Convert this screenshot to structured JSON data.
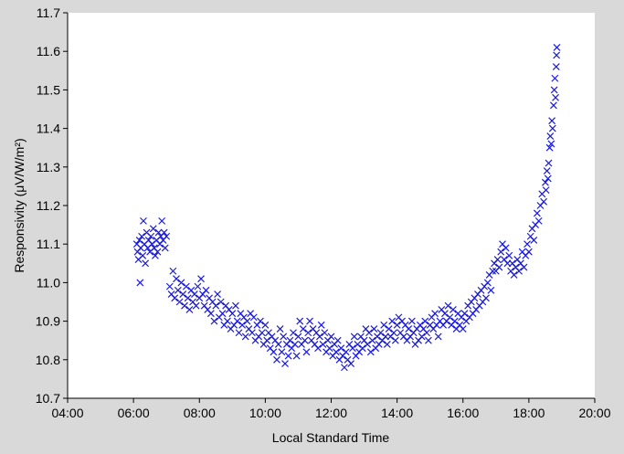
{
  "chart_data": {
    "type": "scatter",
    "title": "",
    "xlabel": "Local Standard Time",
    "ylabel": "Responsivity (μV/W/m²)",
    "x_unit": "hours (local standard time)",
    "xlim": [
      4,
      20
    ],
    "ylim": [
      10.7,
      11.7
    ],
    "x_ticks": [
      {
        "value": 4,
        "label": "04:00"
      },
      {
        "value": 6,
        "label": "06:00"
      },
      {
        "value": 8,
        "label": "08:00"
      },
      {
        "value": 10,
        "label": "10:00"
      },
      {
        "value": 12,
        "label": "12:00"
      },
      {
        "value": 14,
        "label": "14:00"
      },
      {
        "value": 16,
        "label": "16:00"
      },
      {
        "value": 18,
        "label": "18:00"
      },
      {
        "value": 20,
        "label": "20:00"
      }
    ],
    "y_ticks": [
      {
        "value": 10.7,
        "label": "10.7"
      },
      {
        "value": 10.8,
        "label": "10.8"
      },
      {
        "value": 10.9,
        "label": "10.9"
      },
      {
        "value": 11.0,
        "label": "11.0"
      },
      {
        "value": 11.1,
        "label": "11.1"
      },
      {
        "value": 11.2,
        "label": "11.2"
      },
      {
        "value": 11.3,
        "label": "11.3"
      },
      {
        "value": 11.4,
        "label": "11.4"
      },
      {
        "value": 11.5,
        "label": "11.5"
      },
      {
        "value": 11.6,
        "label": "11.6"
      },
      {
        "value": 11.7,
        "label": "11.7"
      }
    ],
    "grid": false,
    "legend": "none",
    "marker": "x",
    "colors": {
      "marker": "#1a1adc",
      "plot_background": "#ffffff",
      "frame_background": "#d9d9d9",
      "axis": "#000000"
    },
    "series": [
      {
        "marker": "x",
        "points": [
          [
            6.1,
            11.1
          ],
          [
            6.12,
            11.08
          ],
          [
            6.15,
            11.06
          ],
          [
            6.18,
            11.11
          ],
          [
            6.2,
            11.0
          ],
          [
            6.22,
            11.09
          ],
          [
            6.25,
            11.12
          ],
          [
            6.28,
            11.07
          ],
          [
            6.3,
            11.16
          ],
          [
            6.33,
            11.1
          ],
          [
            6.36,
            11.05
          ],
          [
            6.4,
            11.13
          ],
          [
            6.43,
            11.09
          ],
          [
            6.46,
            11.11
          ],
          [
            6.5,
            11.08
          ],
          [
            6.53,
            11.12
          ],
          [
            6.56,
            11.1
          ],
          [
            6.6,
            11.14
          ],
          [
            6.63,
            11.09
          ],
          [
            6.66,
            11.07
          ],
          [
            6.7,
            11.11
          ],
          [
            6.73,
            11.08
          ],
          [
            6.76,
            11.13
          ],
          [
            6.8,
            11.1
          ],
          [
            6.83,
            11.12
          ],
          [
            6.86,
            11.16
          ],
          [
            6.9,
            11.11
          ],
          [
            6.93,
            11.13
          ],
          [
            6.96,
            11.09
          ],
          [
            7.0,
            11.12
          ],
          [
            7.1,
            10.99
          ],
          [
            7.15,
            10.97
          ],
          [
            7.2,
            11.03
          ],
          [
            7.25,
            10.96
          ],
          [
            7.3,
            11.01
          ],
          [
            7.35,
            10.98
          ],
          [
            7.4,
            10.95
          ],
          [
            7.45,
            11.0
          ],
          [
            7.5,
            10.97
          ],
          [
            7.55,
            10.94
          ],
          [
            7.6,
            10.99
          ],
          [
            7.65,
            10.96
          ],
          [
            7.7,
            10.93
          ],
          [
            7.75,
            10.98
          ],
          [
            7.8,
            10.95
          ],
          [
            7.85,
            10.97
          ],
          [
            7.9,
            10.94
          ],
          [
            7.95,
            10.99
          ],
          [
            8.0,
            10.96
          ],
          [
            8.05,
            11.01
          ],
          [
            8.1,
            10.97
          ],
          [
            8.15,
            10.94
          ],
          [
            8.2,
            10.98
          ],
          [
            8.25,
            10.93
          ],
          [
            8.3,
            10.96
          ],
          [
            8.35,
            10.92
          ],
          [
            8.4,
            10.95
          ],
          [
            8.45,
            10.9
          ],
          [
            8.5,
            10.94
          ],
          [
            8.55,
            10.97
          ],
          [
            8.6,
            10.91
          ],
          [
            8.65,
            10.95
          ],
          [
            8.7,
            10.92
          ],
          [
            8.75,
            10.89
          ],
          [
            8.8,
            10.94
          ],
          [
            8.85,
            10.9
          ],
          [
            8.9,
            10.93
          ],
          [
            8.95,
            10.88
          ],
          [
            9.0,
            10.92
          ],
          [
            9.05,
            10.89
          ],
          [
            9.1,
            10.94
          ],
          [
            9.15,
            10.9
          ],
          [
            9.2,
            10.87
          ],
          [
            9.25,
            10.92
          ],
          [
            9.3,
            10.89
          ],
          [
            9.35,
            10.91
          ],
          [
            9.4,
            10.86
          ],
          [
            9.45,
            10.9
          ],
          [
            9.5,
            10.88
          ],
          [
            9.55,
            10.92
          ],
          [
            9.6,
            10.87
          ],
          [
            9.65,
            10.91
          ],
          [
            9.7,
            10.85
          ],
          [
            9.75,
            10.89
          ],
          [
            9.8,
            10.86
          ],
          [
            9.85,
            10.9
          ],
          [
            9.9,
            10.87
          ],
          [
            9.95,
            10.84
          ],
          [
            10.0,
            10.89
          ],
          [
            10.05,
            10.85
          ],
          [
            10.1,
            10.87
          ],
          [
            10.15,
            10.83
          ],
          [
            10.2,
            10.86
          ],
          [
            10.25,
            10.82
          ],
          [
            10.3,
            10.85
          ],
          [
            10.35,
            10.8
          ],
          [
            10.4,
            10.84
          ],
          [
            10.45,
            10.88
          ],
          [
            10.5,
            10.82
          ],
          [
            10.55,
            10.86
          ],
          [
            10.6,
            10.79
          ],
          [
            10.65,
            10.84
          ],
          [
            10.7,
            10.81
          ],
          [
            10.75,
            10.85
          ],
          [
            10.8,
            10.83
          ],
          [
            10.85,
            10.87
          ],
          [
            10.9,
            10.84
          ],
          [
            10.95,
            10.81
          ],
          [
            11.0,
            10.86
          ],
          [
            11.05,
            10.9
          ],
          [
            11.1,
            10.84
          ],
          [
            11.15,
            10.88
          ],
          [
            11.2,
            10.85
          ],
          [
            11.25,
            10.82
          ],
          [
            11.3,
            10.87
          ],
          [
            11.35,
            10.9
          ],
          [
            11.4,
            10.85
          ],
          [
            11.45,
            10.88
          ],
          [
            11.5,
            10.84
          ],
          [
            11.55,
            10.87
          ],
          [
            11.6,
            10.83
          ],
          [
            11.65,
            10.86
          ],
          [
            11.7,
            10.89
          ],
          [
            11.75,
            10.84
          ],
          [
            11.8,
            10.87
          ],
          [
            11.85,
            10.82
          ],
          [
            11.9,
            10.85
          ],
          [
            11.95,
            10.83
          ],
          [
            12.0,
            10.86
          ],
          [
            12.05,
            10.81
          ],
          [
            12.1,
            10.84
          ],
          [
            12.15,
            10.82
          ],
          [
            12.2,
            10.85
          ],
          [
            12.25,
            10.8
          ],
          [
            12.3,
            10.83
          ],
          [
            12.35,
            10.81
          ],
          [
            12.4,
            10.78
          ],
          [
            12.45,
            10.82
          ],
          [
            12.5,
            10.8
          ],
          [
            12.55,
            10.84
          ],
          [
            12.6,
            10.79
          ],
          [
            12.65,
            10.83
          ],
          [
            12.7,
            10.86
          ],
          [
            12.75,
            10.81
          ],
          [
            12.8,
            10.84
          ],
          [
            12.85,
            10.82
          ],
          [
            12.9,
            10.86
          ],
          [
            12.95,
            10.83
          ],
          [
            13.0,
            10.85
          ],
          [
            13.05,
            10.88
          ],
          [
            13.1,
            10.84
          ],
          [
            13.15,
            10.87
          ],
          [
            13.2,
            10.82
          ],
          [
            13.25,
            10.85
          ],
          [
            13.3,
            10.88
          ],
          [
            13.35,
            10.83
          ],
          [
            13.4,
            10.86
          ],
          [
            13.45,
            10.84
          ],
          [
            13.5,
            10.87
          ],
          [
            13.55,
            10.85
          ],
          [
            13.6,
            10.89
          ],
          [
            13.65,
            10.86
          ],
          [
            13.7,
            10.84
          ],
          [
            13.75,
            10.88
          ],
          [
            13.8,
            10.86
          ],
          [
            13.85,
            10.9
          ],
          [
            13.9,
            10.87
          ],
          [
            13.95,
            10.85
          ],
          [
            14.0,
            10.89
          ],
          [
            14.05,
            10.91
          ],
          [
            14.1,
            10.87
          ],
          [
            14.15,
            10.9
          ],
          [
            14.2,
            10.86
          ],
          [
            14.25,
            10.89
          ],
          [
            14.3,
            10.85
          ],
          [
            14.35,
            10.88
          ],
          [
            14.4,
            10.86
          ],
          [
            14.45,
            10.9
          ],
          [
            14.5,
            10.87
          ],
          [
            14.55,
            10.84
          ],
          [
            14.6,
            10.88
          ],
          [
            14.65,
            10.85
          ],
          [
            14.7,
            10.89
          ],
          [
            14.75,
            10.86
          ],
          [
            14.8,
            10.88
          ],
          [
            14.85,
            10.9
          ],
          [
            14.9,
            10.87
          ],
          [
            14.95,
            10.85
          ],
          [
            15.0,
            10.89
          ],
          [
            15.05,
            10.91
          ],
          [
            15.1,
            10.88
          ],
          [
            15.15,
            10.92
          ],
          [
            15.2,
            10.89
          ],
          [
            15.25,
            10.86
          ],
          [
            15.3,
            10.9
          ],
          [
            15.35,
            10.93
          ],
          [
            15.4,
            10.89
          ],
          [
            15.45,
            10.92
          ],
          [
            15.5,
            10.9
          ],
          [
            15.55,
            10.94
          ],
          [
            15.6,
            10.91
          ],
          [
            15.65,
            10.89
          ],
          [
            15.7,
            10.93
          ],
          [
            15.75,
            10.9
          ],
          [
            15.8,
            10.88
          ],
          [
            15.85,
            10.92
          ],
          [
            15.9,
            10.89
          ],
          [
            15.95,
            10.91
          ],
          [
            16.0,
            10.88
          ],
          [
            16.05,
            10.92
          ],
          [
            16.1,
            10.9
          ],
          [
            16.15,
            10.94
          ],
          [
            16.2,
            10.91
          ],
          [
            16.25,
            10.95
          ],
          [
            16.3,
            10.92
          ],
          [
            16.35,
            10.96
          ],
          [
            16.4,
            10.93
          ],
          [
            16.45,
            10.97
          ],
          [
            16.5,
            10.94
          ],
          [
            16.55,
            10.98
          ],
          [
            16.6,
            10.95
          ],
          [
            16.65,
            10.99
          ],
          [
            16.7,
            10.96
          ],
          [
            16.75,
            11.0
          ],
          [
            16.8,
            11.02
          ],
          [
            16.85,
            10.98
          ],
          [
            16.9,
            11.03
          ],
          [
            16.95,
            11.05
          ],
          [
            17.0,
            11.03
          ],
          [
            17.05,
            11.06
          ],
          [
            17.1,
            11.04
          ],
          [
            17.15,
            11.08
          ],
          [
            17.2,
            11.1
          ],
          [
            17.25,
            11.06
          ],
          [
            17.3,
            11.09
          ],
          [
            17.35,
            11.05
          ],
          [
            17.4,
            11.07
          ],
          [
            17.45,
            11.03
          ],
          [
            17.5,
            11.05
          ],
          [
            17.55,
            11.02
          ],
          [
            17.6,
            11.04
          ],
          [
            17.65,
            11.06
          ],
          [
            17.7,
            11.03
          ],
          [
            17.75,
            11.05
          ],
          [
            17.8,
            11.08
          ],
          [
            17.85,
            11.04
          ],
          [
            17.9,
            11.07
          ],
          [
            17.95,
            11.1
          ],
          [
            18.0,
            11.08
          ],
          [
            18.05,
            11.12
          ],
          [
            18.1,
            11.14
          ],
          [
            18.15,
            11.11
          ],
          [
            18.2,
            11.15
          ],
          [
            18.25,
            11.18
          ],
          [
            18.3,
            11.16
          ],
          [
            18.35,
            11.2
          ],
          [
            18.4,
            11.23
          ],
          [
            18.45,
            11.21
          ],
          [
            18.5,
            11.26
          ],
          [
            18.52,
            11.24
          ],
          [
            18.55,
            11.29
          ],
          [
            18.58,
            11.27
          ],
          [
            18.6,
            11.31
          ],
          [
            18.63,
            11.35
          ],
          [
            18.65,
            11.38
          ],
          [
            18.68,
            11.36
          ],
          [
            18.7,
            11.42
          ],
          [
            18.72,
            11.4
          ],
          [
            18.75,
            11.46
          ],
          [
            18.77,
            11.5
          ],
          [
            18.79,
            11.53
          ],
          [
            18.81,
            11.48
          ],
          [
            18.83,
            11.56
          ],
          [
            18.84,
            11.59
          ],
          [
            18.85,
            11.61
          ]
        ]
      }
    ]
  }
}
